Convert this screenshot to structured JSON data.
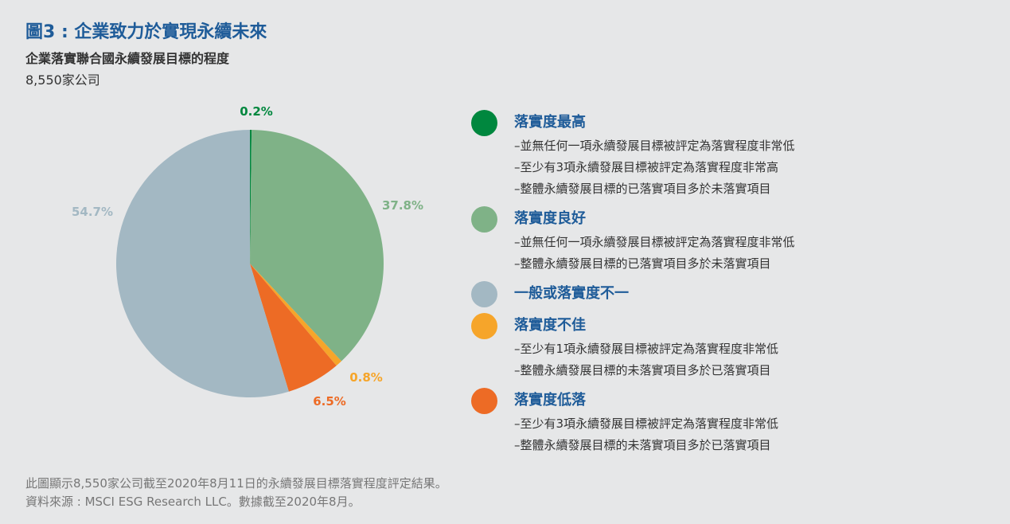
{
  "title": "圖3 : 企業致力於實現永續未來",
  "subtitle": "企業落實聯合國永續發展目標的程度",
  "count_label": "8,550家公司",
  "chart_data": {
    "type": "pie",
    "start_angle_deg": 0,
    "direction": "clockwise",
    "slices": [
      {
        "label": "落實度最高",
        "value": 0.2,
        "display": "0.2%",
        "color": "#00873e"
      },
      {
        "label": "落實度良好",
        "value": 37.8,
        "display": "37.8%",
        "color": "#7fb287"
      },
      {
        "label": "落實度不佳",
        "value": 0.8,
        "display": "0.8%",
        "color": "#f6a52a"
      },
      {
        "label": "落實度低落",
        "value": 6.5,
        "display": "6.5%",
        "color": "#ed6b25"
      },
      {
        "label": "一般或落實度不一",
        "value": 54.7,
        "display": "54.7%",
        "color": "#a3b8c3"
      }
    ]
  },
  "legend": [
    {
      "label": "落實度最高",
      "color": "#00873e",
      "lines": [
        "–並無任何一項永續發展目標被評定為落實程度非常低",
        "–至少有3項永續發展目標被評定為落實程度非常高",
        "–整體永續發展目標的已落實項目多於未落實項目"
      ]
    },
    {
      "label": "落實度良好",
      "color": "#7fb287",
      "lines": [
        "–並無任何一項永續發展目標被評定為落實程度非常低",
        "–整體永續發展目標的已落實項目多於未落實項目"
      ]
    },
    {
      "label": "一般或落實度不一",
      "color": "#a3b8c3",
      "lines": []
    },
    {
      "label": "落實度不佳",
      "color": "#f6a52a",
      "lines": [
        "–至少有1項永續發展目標被評定為落實程度非常低",
        "–整體永續發展目標的未落實項目多於已落實項目"
      ]
    },
    {
      "label": "落實度低落",
      "color": "#ed6b25",
      "lines": [
        "–至少有3項永續發展目標被評定為落實程度非常低",
        "–整體永續發展目標的未落實項目多於已落實項目"
      ]
    }
  ],
  "footnotes": [
    "此圖顯示8,550家公司截至2020年8月11日的永續發展目標落實程度評定結果。",
    "資料來源 : MSCI ESG Research LLC。數據截至2020年8月。"
  ]
}
